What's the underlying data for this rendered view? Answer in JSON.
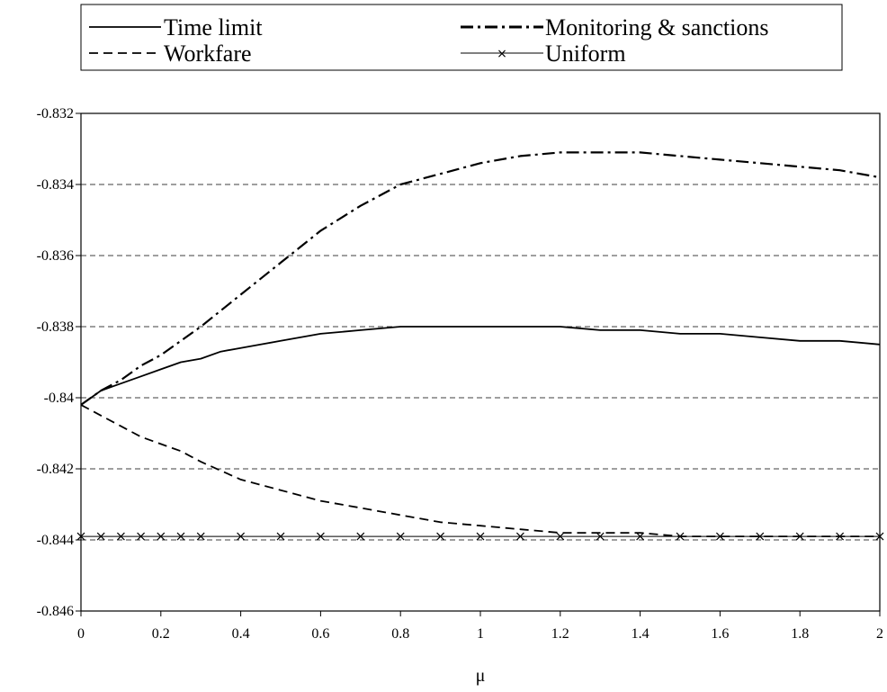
{
  "chart_data": {
    "type": "line",
    "title": "",
    "xlabel": "μ",
    "ylabel": "",
    "xlim": [
      0,
      2
    ],
    "ylim": [
      -0.846,
      -0.832
    ],
    "xticks": [
      "0",
      "0.2",
      "0.4",
      "0.6",
      "0.8",
      "1",
      "1.2",
      "1.4",
      "1.6",
      "1.8",
      "2"
    ],
    "yticks": [
      "-0.832",
      "-0.834",
      "-0.836",
      "-0.838",
      "-0.84",
      "-0.842",
      "-0.844",
      "-0.846"
    ],
    "grid": "horizontal dashed",
    "legend_position": "top",
    "series": [
      {
        "name": "Time limit",
        "style": "solid",
        "x": [
          0,
          0.05,
          0.1,
          0.15,
          0.2,
          0.25,
          0.3,
          0.35,
          0.4,
          0.45,
          0.5,
          0.6,
          0.7,
          0.8,
          0.9,
          1.0,
          1.1,
          1.2,
          1.3,
          1.4,
          1.5,
          1.6,
          1.7,
          1.8,
          1.9,
          2.0
        ],
        "y": [
          -0.8402,
          -0.8398,
          -0.8396,
          -0.8394,
          -0.8392,
          -0.839,
          -0.8389,
          -0.8387,
          -0.8386,
          -0.8385,
          -0.8384,
          -0.8382,
          -0.8381,
          -0.838,
          -0.838,
          -0.838,
          -0.838,
          -0.838,
          -0.8381,
          -0.8381,
          -0.8382,
          -0.8382,
          -0.8383,
          -0.8384,
          -0.8384,
          -0.8385
        ]
      },
      {
        "name": "Monitoring & sanctions",
        "style": "dashdot",
        "x": [
          0,
          0.05,
          0.1,
          0.15,
          0.2,
          0.25,
          0.3,
          0.4,
          0.5,
          0.6,
          0.7,
          0.8,
          0.9,
          1.0,
          1.1,
          1.2,
          1.3,
          1.4,
          1.5,
          1.6,
          1.7,
          1.8,
          1.9,
          2.0
        ],
        "y": [
          -0.8402,
          -0.8398,
          -0.8395,
          -0.8391,
          -0.8388,
          -0.8384,
          -0.838,
          -0.8371,
          -0.8362,
          -0.8353,
          -0.8346,
          -0.834,
          -0.8337,
          -0.8334,
          -0.8332,
          -0.8331,
          -0.8331,
          -0.8331,
          -0.8332,
          -0.8333,
          -0.8334,
          -0.8335,
          -0.8336,
          -0.8338
        ]
      },
      {
        "name": "Workfare",
        "style": "dashed",
        "x": [
          0,
          0.05,
          0.1,
          0.15,
          0.2,
          0.25,
          0.3,
          0.4,
          0.5,
          0.6,
          0.7,
          0.8,
          0.9,
          1.0,
          1.1,
          1.2,
          1.3,
          1.4,
          1.5,
          1.6,
          1.7,
          1.8,
          1.9,
          2.0
        ],
        "y": [
          -0.8402,
          -0.8405,
          -0.8408,
          -0.8411,
          -0.8413,
          -0.8415,
          -0.8418,
          -0.8423,
          -0.8426,
          -0.8429,
          -0.8431,
          -0.8433,
          -0.8435,
          -0.8436,
          -0.8437,
          -0.8438,
          -0.8438,
          -0.8438,
          -0.8439,
          -0.8439,
          -0.8439,
          -0.8439,
          -0.8439,
          -0.8439
        ]
      },
      {
        "name": "Uniform",
        "style": "solid-x",
        "x": [
          0,
          0.05,
          0.1,
          0.15,
          0.2,
          0.25,
          0.3,
          0.4,
          0.5,
          0.6,
          0.7,
          0.8,
          0.9,
          1.0,
          1.1,
          1.2,
          1.3,
          1.4,
          1.5,
          1.6,
          1.7,
          1.8,
          1.9,
          2.0
        ],
        "y": [
          -0.8439,
          -0.8439,
          -0.8439,
          -0.8439,
          -0.8439,
          -0.8439,
          -0.8439,
          -0.8439,
          -0.8439,
          -0.8439,
          -0.8439,
          -0.8439,
          -0.8439,
          -0.8439,
          -0.8439,
          -0.8439,
          -0.8439,
          -0.8439,
          -0.8439,
          -0.8439,
          -0.8439,
          -0.8439,
          -0.8439,
          -0.8439
        ]
      }
    ]
  }
}
